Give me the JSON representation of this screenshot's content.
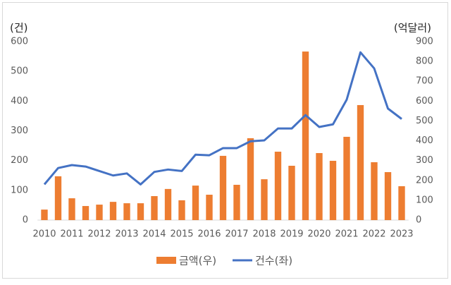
{
  "chart_data": {
    "type": "bar-line",
    "y_label": "(건)",
    "y2_label": "(억달러)",
    "categories": [
      "2010",
      null,
      "2011",
      null,
      "2012",
      null,
      "2013",
      null,
      "2014",
      null,
      "2015",
      null,
      "2016",
      null,
      "2017",
      null,
      "2018",
      null,
      "2019",
      null,
      "2020",
      null,
      "2021",
      null,
      "2022",
      null,
      "2023"
    ],
    "series": [
      {
        "name": "금액(우)",
        "type": "bar",
        "axis": "y2",
        "color": "#ed7d31",
        "values": [
          53,
          221,
          110,
          71,
          78,
          92,
          85,
          85,
          121,
          157,
          100,
          174,
          128,
          324,
          178,
          413,
          206,
          345,
          274,
          850,
          338,
          299,
          420,
          580,
          292,
          242,
          171
        ]
      },
      {
        "name": "건수(좌)",
        "type": "line",
        "color": "#4472c4",
        "values": [
          120,
          175,
          185,
          180,
          165,
          150,
          157,
          120,
          162,
          170,
          165,
          220,
          218,
          242,
          242,
          265,
          268,
          308,
          308,
          353,
          313,
          322,
          405,
          564,
          510,
          375,
          340
        ]
      }
    ],
    "ylim": [
      0,
      600
    ],
    "yticks": [
      0,
      100,
      200,
      300,
      400,
      500,
      600
    ],
    "y2lim": [
      0,
      900
    ],
    "y2ticks": [
      0,
      100,
      200,
      300,
      400,
      500,
      600,
      700,
      800,
      900
    ]
  }
}
